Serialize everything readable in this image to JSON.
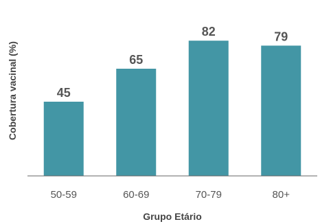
{
  "chart_data": {
    "type": "bar",
    "title": "",
    "xlabel": "Grupo Etário",
    "ylabel": "Cobertura vacinal (%)",
    "categories": [
      "50-59",
      "60-69",
      "70-79",
      "80+"
    ],
    "values": [
      45,
      65,
      82,
      79
    ],
    "ylim": [
      0,
      100
    ],
    "grid": false,
    "legend": "none",
    "bar_color": "#4396a5",
    "axis_color": "#666666"
  }
}
